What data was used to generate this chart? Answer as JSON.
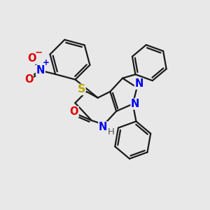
{
  "bg_color": "#e8e8e8",
  "bond_color": "#1a1a1a",
  "bond_width": 1.6,
  "dbo": 0.12,
  "atom_colors": {
    "N": "#0000EE",
    "O": "#DD0000",
    "S": "#BBAA00",
    "H": "#555555",
    "C": "#1a1a1a"
  },
  "fs": 10.5,
  "fss": 8.5
}
